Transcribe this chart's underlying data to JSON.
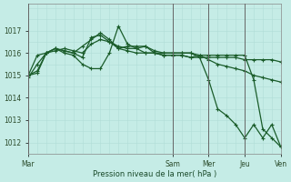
{
  "title": "",
  "xlabel": "Pression niveau de la mer( hPa )",
  "background_color": "#c5ece6",
  "grid_color": "#b0ddd6",
  "line_color": "#1a5c2a",
  "vline_color": "#666666",
  "ylim": [
    1011.5,
    1018.2
  ],
  "yticks": [
    1012,
    1013,
    1014,
    1015,
    1016,
    1017
  ],
  "xlim": [
    0,
    168
  ],
  "x_tick_positions": [
    0,
    96,
    120,
    144,
    168
  ],
  "x_tick_labels": [
    "Mar",
    "Sam",
    "Mer",
    "Jeu",
    "Ven"
  ],
  "vline_positions": [
    0,
    96,
    120,
    144,
    168
  ],
  "series": [
    {
      "x": [
        0,
        6,
        12,
        18,
        24,
        30,
        36,
        42,
        48,
        54,
        60,
        66,
        72,
        78,
        84,
        90,
        96,
        102,
        108,
        114,
        120,
        126,
        132,
        138,
        144,
        150,
        156,
        162,
        168
      ],
      "y": [
        1015.0,
        1015.9,
        1016.0,
        1016.2,
        1016.1,
        1016.0,
        1016.3,
        1016.6,
        1016.9,
        1016.6,
        1016.2,
        1016.3,
        1016.3,
        1016.3,
        1016.0,
        1015.9,
        1015.9,
        1015.9,
        1015.8,
        1015.9,
        1015.9,
        1015.9,
        1015.9,
        1015.9,
        1015.9,
        1014.8,
        1012.6,
        1012.2,
        1011.8
      ]
    },
    {
      "x": [
        0,
        6,
        12,
        18,
        24,
        30,
        36,
        42,
        48,
        54,
        60,
        66,
        72,
        78,
        84,
        90,
        96,
        102,
        108,
        114,
        120,
        126,
        132,
        138,
        144,
        150,
        156,
        162,
        168
      ],
      "y": [
        1014.9,
        1015.5,
        1016.0,
        1016.1,
        1016.2,
        1016.1,
        1016.0,
        1016.4,
        1016.6,
        1016.5,
        1016.3,
        1016.2,
        1016.2,
        1016.0,
        1016.0,
        1015.9,
        1015.9,
        1015.9,
        1015.8,
        1015.8,
        1015.8,
        1015.8,
        1015.8,
        1015.8,
        1015.7,
        1015.7,
        1015.7,
        1015.7,
        1015.6
      ]
    },
    {
      "x": [
        0,
        6,
        12,
        18,
        24,
        30,
        36,
        42,
        48,
        54,
        60,
        66,
        72,
        78,
        84,
        90,
        96,
        102,
        108,
        114,
        120,
        126,
        132,
        138,
        144,
        150,
        156,
        162,
        168
      ],
      "y": [
        1015.0,
        1015.2,
        1016.0,
        1016.2,
        1016.1,
        1016.0,
        1015.8,
        1016.7,
        1016.8,
        1016.5,
        1016.2,
        1016.1,
        1016.0,
        1016.0,
        1016.0,
        1016.0,
        1016.0,
        1016.0,
        1016.0,
        1015.9,
        1015.7,
        1015.5,
        1015.4,
        1015.3,
        1015.2,
        1015.0,
        1014.9,
        1014.8,
        1014.7
      ]
    },
    {
      "x": [
        0,
        6,
        12,
        18,
        24,
        30,
        36,
        42,
        48,
        54,
        60,
        66,
        72,
        78,
        84,
        90,
        96,
        102,
        108,
        114,
        120,
        126,
        132,
        138,
        144,
        150,
        156,
        162,
        168
      ],
      "y": [
        1015.0,
        1015.1,
        1016.0,
        1016.2,
        1016.0,
        1015.9,
        1015.5,
        1015.3,
        1015.3,
        1016.0,
        1017.2,
        1016.4,
        1016.2,
        1016.3,
        1016.1,
        1016.0,
        1016.0,
        1016.0,
        1016.0,
        1015.8,
        1014.8,
        1013.5,
        1013.2,
        1012.8,
        1012.2,
        1012.8,
        1012.2,
        1012.8,
        1011.8
      ]
    }
  ]
}
